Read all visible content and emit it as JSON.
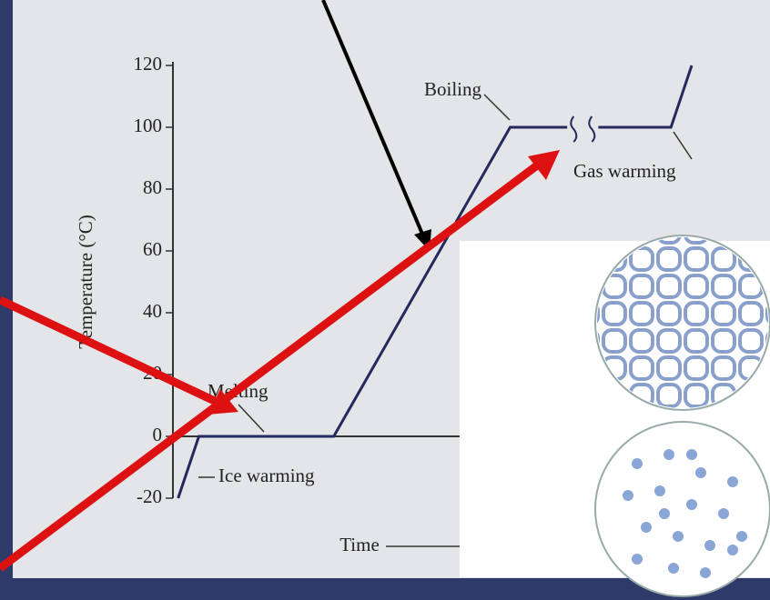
{
  "chart_data": {
    "type": "line",
    "y_label": "Temperature (°C)",
    "x_label": "Time",
    "annotations": [
      "Boiling",
      "Gas warming",
      "Melting",
      "Ice warming"
    ],
    "x": [
      1,
      5,
      31,
      65,
      76,
      null,
      82,
      96,
      100
    ],
    "values": [
      -20,
      0,
      0,
      100,
      100,
      null,
      100,
      100,
      120
    ],
    "color": "#26295e",
    "xlim": [
      0,
      100
    ],
    "ylim": [
      -20,
      120
    ],
    "yticks": [
      -20,
      0,
      20,
      40,
      60,
      80,
      100,
      120
    ],
    "grid": false
  }
}
